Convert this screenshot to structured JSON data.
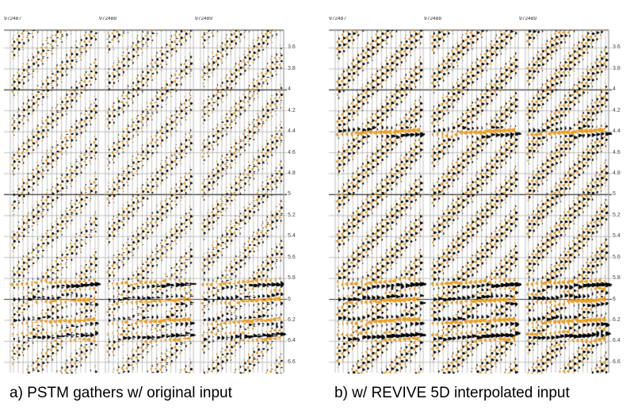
{
  "chart_data": [
    {
      "type": "seismic-wiggle",
      "title": "a) PSTM gathers w/ original input",
      "gather_labels": [
        "972487",
        "972488",
        "972489"
      ],
      "y_ticks": [
        "3.6",
        "3.8",
        "4",
        "4.2",
        "4.4",
        "4.6",
        "4.8",
        "5",
        "5.2",
        "5.4",
        "5.6",
        "5.8",
        "6",
        "6.2",
        "6.4",
        "6.6"
      ],
      "ylim": [
        3.43,
        6.7
      ],
      "traces_per_gather": 18,
      "strong_events": [
        5.85,
        6.0,
        6.2,
        6.35
      ],
      "fill_colors": {
        "positive": "#000000",
        "negative": "#f0a020"
      },
      "density": "sparse"
    },
    {
      "type": "seismic-wiggle",
      "title": "b) w/ REVIVE 5D interpolated input",
      "gather_labels": [
        "972487",
        "972488",
        "972489"
      ],
      "y_ticks": [
        "3.6",
        "3.8",
        "4",
        "4.2",
        "4.4",
        "4.6",
        "4.8",
        "5",
        "5.2",
        "5.4",
        "5.6",
        "5.8",
        "6",
        "6.2",
        "6.4",
        "6.6"
      ],
      "ylim": [
        3.43,
        6.7
      ],
      "traces_per_gather": 18,
      "strong_events": [
        4.4,
        5.85,
        6.0,
        6.2,
        6.35
      ],
      "fill_colors": {
        "positive": "#000000",
        "negative": "#f0a020"
      },
      "density": "dense"
    }
  ]
}
